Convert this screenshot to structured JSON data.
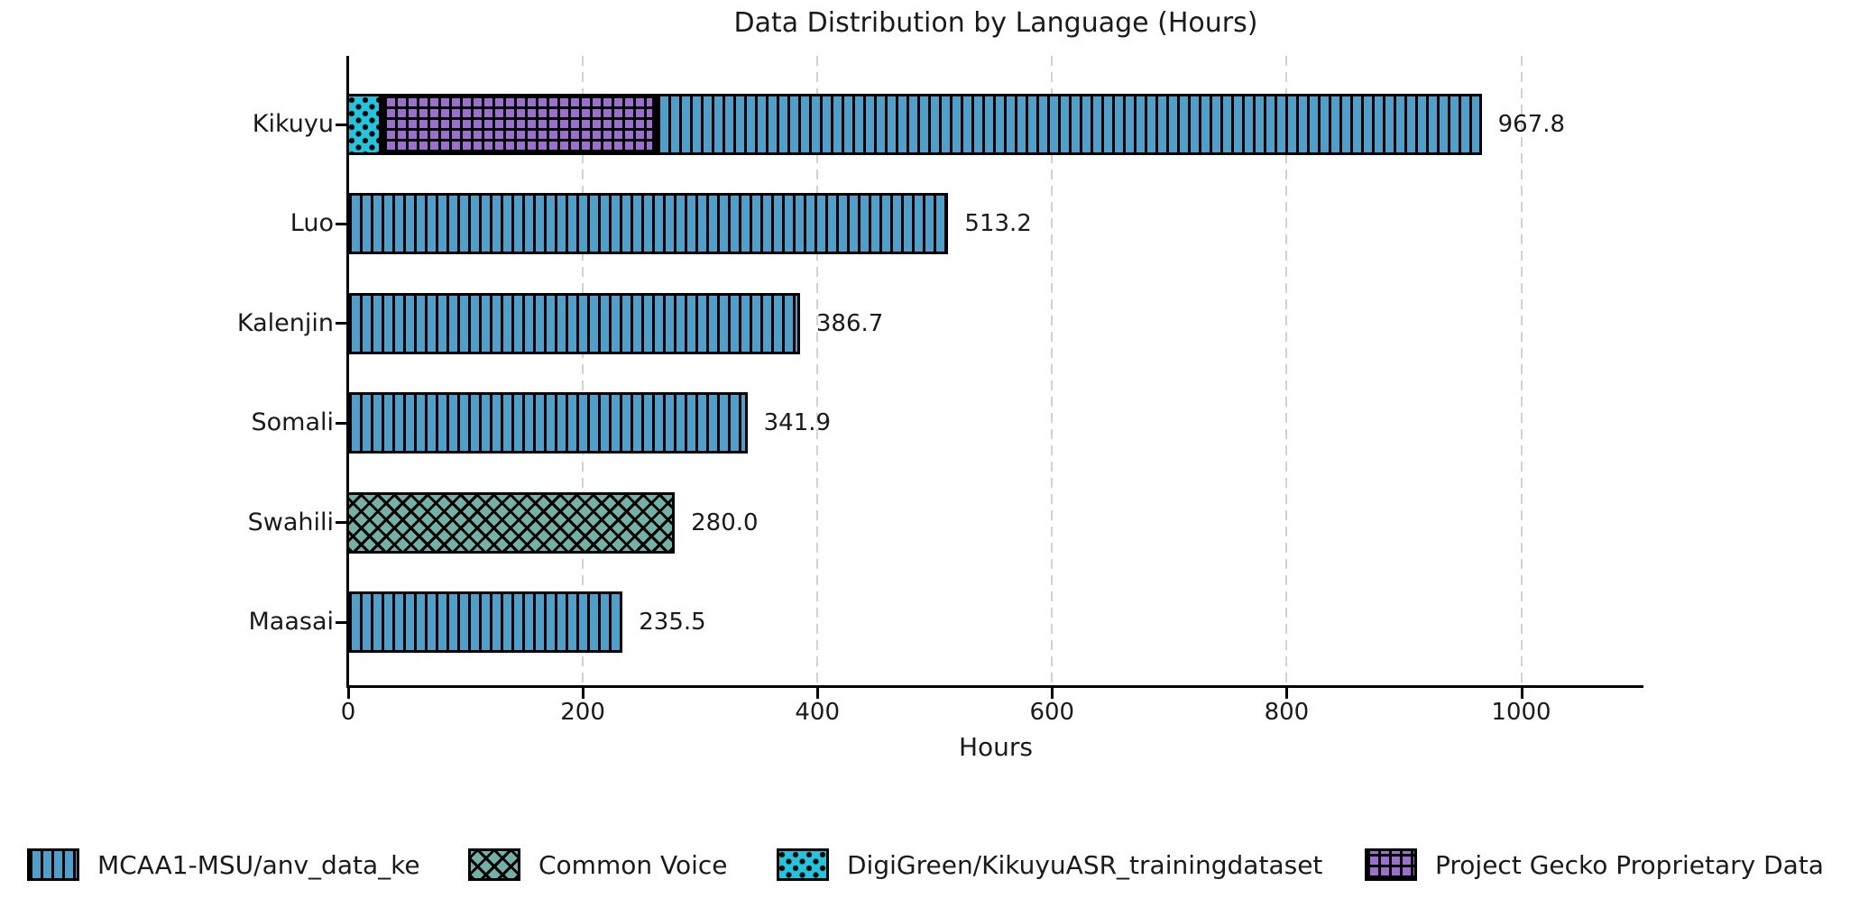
{
  "chart_data": {
    "type": "bar",
    "orientation": "horizontal-stacked",
    "title": "Data Distribution by Language (Hours)",
    "xlabel": "Hours",
    "categories": [
      "Kikuyu",
      "Luo",
      "Kalenjin",
      "Somali",
      "Swahili",
      "Maasai"
    ],
    "totals": [
      967.8,
      513.2,
      386.7,
      341.9,
      280.0,
      235.5
    ],
    "total_labels": [
      "967.8",
      "513.2",
      "386.7",
      "341.9",
      "280.0",
      "235.5"
    ],
    "xticks": [
      0,
      200,
      400,
      600,
      800,
      1000
    ],
    "xtick_labels": [
      "0",
      "200",
      "400",
      "600",
      "800",
      "1000"
    ],
    "xlim": [
      0,
      1104
    ],
    "grid": "vertical-dashed",
    "legend_position": "bottom",
    "bar_edge_color": "#000000",
    "series": [
      {
        "name": "MCAA1-MSU/anv_data_ke",
        "color": "#4f9fcb",
        "hatch": "vlines",
        "values": [
          705.0,
          513.2,
          386.7,
          341.9,
          0,
          235.5
        ]
      },
      {
        "name": "Common Voice",
        "color": "#72b1a5",
        "hatch": "cross",
        "values": [
          0,
          0,
          0,
          0,
          280.0,
          0
        ]
      },
      {
        "name": "DigiGreen/KikuyuASR_trainingdataset",
        "color": "#22c5dd",
        "hatch": "dots",
        "values": [
          30.0,
          0,
          0,
          0,
          0,
          0
        ]
      },
      {
        "name": "Project Gecko Proprietary Data",
        "color": "#9b6fce",
        "hatch": "plus",
        "values": [
          232.8,
          0,
          0,
          0,
          0,
          0
        ]
      }
    ],
    "stack_order": [
      2,
      3,
      0,
      1
    ]
  }
}
